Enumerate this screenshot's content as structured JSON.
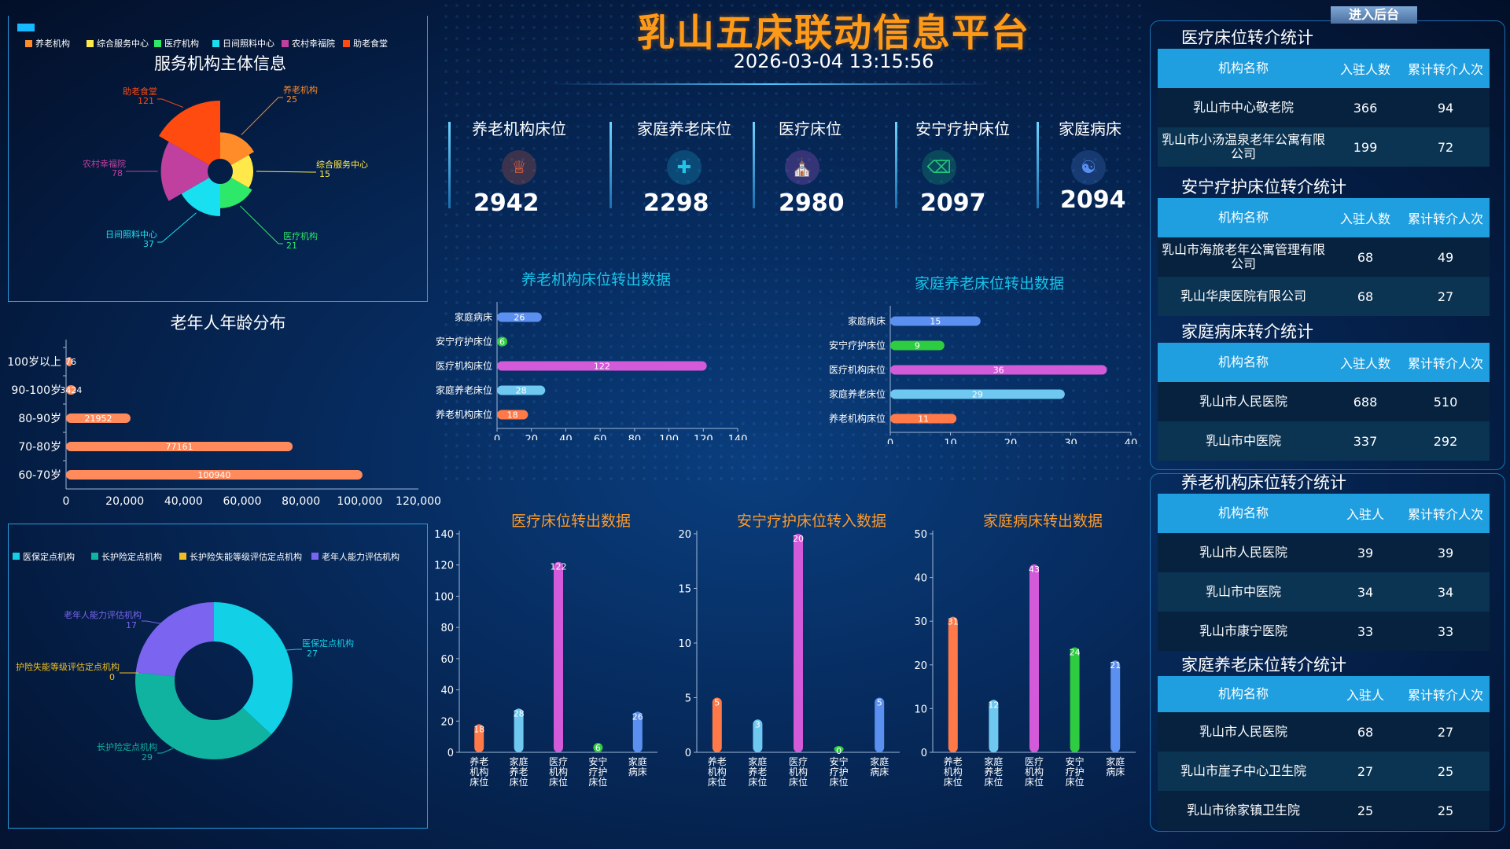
{
  "header": {
    "title": "乳山五床联动信息平台",
    "datetime": "2026-03-04 13:15:56",
    "enter_button": "进入后台"
  },
  "kpis": [
    {
      "label": "养老机构床位",
      "value": "2942",
      "icon": "elder-home-icon",
      "color": "#ff6a3a"
    },
    {
      "label": "家庭养老床位",
      "value": "2298",
      "icon": "home-care-icon",
      "color": "#22c4e6"
    },
    {
      "label": "医疗床位",
      "value": "2980",
      "icon": "hospital-icon",
      "color": "#c05ad8"
    },
    {
      "label": "安宁疗护床位",
      "value": "2097",
      "icon": "bed-icon",
      "color": "#22c77a"
    },
    {
      "label": "家庭病床",
      "value": "2094",
      "icon": "family-bed-icon",
      "color": "#5a8ef0"
    }
  ],
  "tables": [
    {
      "title": "医疗床位转介统计",
      "headers": [
        "机构名称",
        "入驻人数",
        "累计转介人次"
      ],
      "rows": [
        [
          "乳山市中心敬老院",
          "366",
          "94"
        ],
        [
          "乳山市小汤温泉老年公寓有限公司",
          "199",
          "72"
        ]
      ]
    },
    {
      "title": "安宁疗护床位转介统计",
      "headers": [
        "机构名称",
        "入驻人数",
        "累计转介人次"
      ],
      "rows": [
        [
          "乳山市海旅老年公寓管理有限公司",
          "68",
          "49"
        ],
        [
          "乳山华庚医院有限公司",
          "68",
          "27"
        ]
      ]
    },
    {
      "title": "家庭病床转介统计",
      "headers": [
        "机构名称",
        "入驻人数",
        "累计转介人次"
      ],
      "rows": [
        [
          "乳山市人民医院",
          "688",
          "510"
        ],
        [
          "乳山市中医院",
          "337",
          "292"
        ]
      ]
    },
    {
      "title": "养老机构床位转介统计",
      "headers": [
        "机构名称",
        "入驻人",
        "累计转介人次"
      ],
      "rows": [
        [
          "乳山市人民医院",
          "39",
          "39"
        ],
        [
          "乳山市中医院",
          "34",
          "34"
        ],
        [
          "乳山市康宁医院",
          "33",
          "33"
        ]
      ]
    },
    {
      "title": "家庭养老床位转介统计",
      "headers": [
        "机构名称",
        "入驻人",
        "累计转介人次"
      ],
      "rows": [
        [
          "乳山市人民医院",
          "68",
          "27"
        ],
        [
          "乳山市崖子中心卫生院",
          "27",
          "25"
        ],
        [
          "乳山市徐家镇卫生院",
          "25",
          "25"
        ]
      ]
    }
  ],
  "chart_data": [
    {
      "id": "service",
      "type": "pie",
      "title": "服务机构主体信息",
      "legend": [
        "养老机构",
        "综合服务中心",
        "医疗机构",
        "日间照料中心",
        "农村幸福院",
        "助老食堂"
      ],
      "categories": [
        "养老机构",
        "综合服务中心",
        "医疗机构",
        "日间照料中心",
        "农村幸福院",
        "助老食堂"
      ],
      "values": [
        25,
        15,
        21,
        37,
        78,
        121
      ],
      "colors": [
        "#ff8c28",
        "#ffe94a",
        "#2ee86a",
        "#18e0f0",
        "#c040a0",
        "#ff4a10"
      ]
    },
    {
      "id": "age",
      "type": "bar",
      "title": "老年人年龄分布",
      "categories": [
        "100岁以上",
        "90-100岁",
        "80-90岁",
        "70-80岁",
        "60-70岁"
      ],
      "values": [
        76,
        3424,
        21952,
        77161,
        100940
      ],
      "xticks": [
        "0",
        "20,000",
        "40,000",
        "60,000",
        "80,000",
        "100,000",
        "120,000"
      ],
      "xlim": [
        0,
        120000
      ],
      "color": "#ff8a5c"
    },
    {
      "id": "assess",
      "type": "pie",
      "title": "",
      "legend": [
        "医保定点机构",
        "长护险定点机构",
        "长护险失能等级评估定点机构",
        "老年人能力评估机构"
      ],
      "categories": [
        "医保定点机构",
        "长护险定点机构",
        "护险失能等级评估定点机构",
        "老年人能力评估机构"
      ],
      "values": [
        27,
        29,
        0,
        17
      ],
      "colors": [
        "#12d0e6",
        "#0fb3a0",
        "#f0c020",
        "#7a64f0"
      ]
    },
    {
      "id": "elderout",
      "type": "bar",
      "title": "养老机构床位转出数据",
      "categories": [
        "家庭病床",
        "安宁疗护床位",
        "医疗机构床位",
        "家庭养老床位",
        "养老机构床位"
      ],
      "values": [
        26,
        6,
        122,
        28,
        18
      ],
      "colors": [
        "#5b8ff0",
        "#2ecc40",
        "#d35ad8",
        "#6fc8f0",
        "#ff7a48"
      ],
      "xticks": [
        "0",
        "20",
        "40",
        "60",
        "80",
        "100",
        "120",
        "140"
      ],
      "xlim": [
        0,
        140
      ]
    },
    {
      "id": "homeout",
      "type": "bar",
      "title": "家庭养老床位转出数据",
      "categories": [
        "家庭病床",
        "安宁疗护床位",
        "医疗机构床位",
        "家庭养老床位",
        "养老机构床位"
      ],
      "values": [
        15,
        9,
        36,
        29,
        11
      ],
      "colors": [
        "#5b8ff0",
        "#2ecc40",
        "#d35ad8",
        "#6fc8f0",
        "#ff7a48"
      ],
      "xticks": [
        "0",
        "10",
        "20",
        "30",
        "40"
      ],
      "xlim": [
        0,
        40
      ]
    },
    {
      "id": "medout",
      "type": "bar",
      "title": "医疗床位转出数据",
      "categories": [
        "养老机构床位",
        "家庭养老床位",
        "医疗机构床位",
        "安宁疗护床位",
        "家庭病床"
      ],
      "values": [
        18,
        28,
        122,
        6,
        26
      ],
      "colors": [
        "#ff7a48",
        "#6fc8f0",
        "#d35ad8",
        "#2ecc40",
        "#5b8ff0"
      ],
      "yticks": [
        "0",
        "20",
        "40",
        "60",
        "80",
        "100",
        "120",
        "140"
      ],
      "ylim": [
        0,
        140
      ]
    },
    {
      "id": "hospin",
      "type": "bar",
      "title": "安宁疗护床位转入数据",
      "categories": [
        "养老机构床位",
        "家庭养老床位",
        "医疗机构床位",
        "安宁疗护床位",
        "家庭病床"
      ],
      "values": [
        5,
        3,
        20,
        0,
        5
      ],
      "colors": [
        "#ff7a48",
        "#6fc8f0",
        "#d35ad8",
        "#2ecc40",
        "#5b8ff0"
      ],
      "yticks": [
        "0",
        "5",
        "10",
        "15",
        "20"
      ],
      "ylim": [
        0,
        20
      ]
    },
    {
      "id": "fbedout",
      "type": "bar",
      "title": "家庭病床转出数据",
      "categories": [
        "养老机构床位",
        "家庭养老床位",
        "医疗机构床位",
        "安宁疗护床位",
        "家庭病床"
      ],
      "values": [
        31,
        12,
        43,
        24,
        21
      ],
      "colors": [
        "#ff7a48",
        "#6fc8f0",
        "#d35ad8",
        "#2ecc40",
        "#5b8ff0"
      ],
      "yticks": [
        "0",
        "10",
        "20",
        "30",
        "40",
        "50"
      ],
      "ylim": [
        0,
        50
      ]
    }
  ]
}
